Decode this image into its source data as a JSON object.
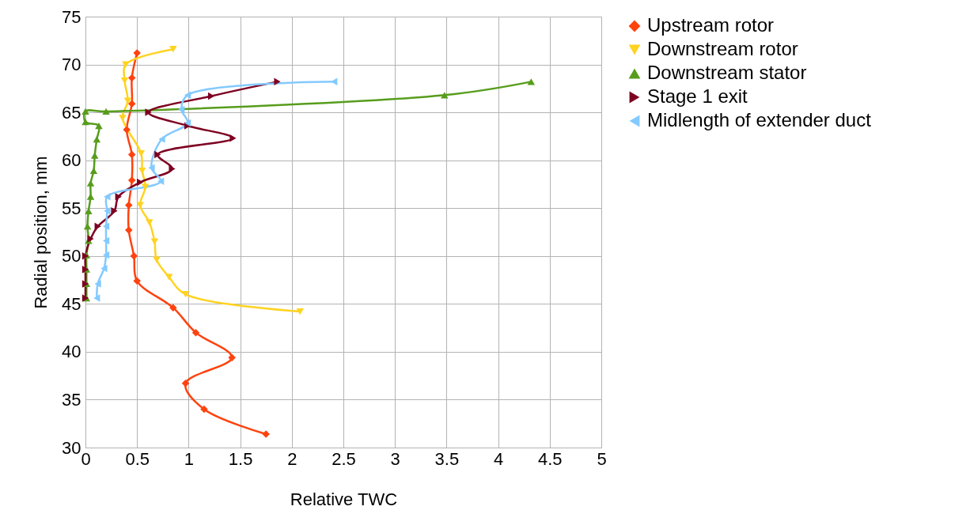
{
  "chart_data": {
    "type": "line",
    "xlabel": "Relative TWC",
    "ylabel": "Radial position, mm",
    "xlim": [
      0,
      5
    ],
    "ylim": [
      30,
      75
    ],
    "xticks": [
      0,
      0.5,
      1,
      1.5,
      2,
      2.5,
      3,
      3.5,
      4,
      4.5,
      5
    ],
    "yticks": [
      30,
      35,
      40,
      45,
      50,
      55,
      60,
      65,
      70,
      75
    ],
    "grid": true,
    "legend": "right",
    "line_style": "solid",
    "series": [
      {
        "name": "Upstream rotor",
        "color": "#ff420e",
        "marker": "diamond",
        "x": [
          1.75,
          1.15,
          0.97,
          1.42,
          1.07,
          0.85,
          0.5,
          0.47,
          0.42,
          0.42,
          0.45,
          0.45,
          0.4,
          0.45,
          0.45,
          0.5
        ],
        "values": [
          31.4,
          34.0,
          36.7,
          39.4,
          42.0,
          44.6,
          47.4,
          50.0,
          52.7,
          55.3,
          57.9,
          60.6,
          63.2,
          65.9,
          68.6,
          71.2
        ]
      },
      {
        "name": "Downstream rotor",
        "color": "#ffd320",
        "marker": "triangle-down",
        "x": [
          2.08,
          0.97,
          0.81,
          0.69,
          0.67,
          0.62,
          0.53,
          0.58,
          0.55,
          0.54,
          0.36,
          0.41,
          0.38,
          0.39,
          0.85
        ],
        "values": [
          44.2,
          46.0,
          47.8,
          49.6,
          51.5,
          53.5,
          55.3,
          57.2,
          58.9,
          60.7,
          64.4,
          66.2,
          68.3,
          70.0,
          71.6
        ]
      },
      {
        "name": "Downstream stator",
        "color": "#579d1c",
        "marker": "triangle-up",
        "x": [
          0.01,
          0.01,
          0.01,
          0.01,
          0.03,
          0.02,
          0.03,
          0.05,
          0.05,
          0.08,
          0.09,
          0.11,
          0.13,
          0,
          0,
          0.2,
          3.48,
          4.32
        ],
        "values": [
          45.6,
          47.1,
          48.6,
          50.1,
          51.6,
          53.1,
          54.7,
          56.2,
          57.6,
          58.9,
          60.5,
          62.2,
          63.6,
          64.0,
          65.1,
          65.1,
          66.8,
          68.2
        ]
      },
      {
        "name": "Stage 1 exit",
        "color": "#7e0021",
        "marker": "triangle-right",
        "x": [
          0,
          0,
          0,
          0,
          0.05,
          0.12,
          0.28,
          0.32,
          0.53,
          0.84,
          0.7,
          1.43,
          0.99,
          0.61,
          1.22,
          1.86
        ],
        "values": [
          45.6,
          47.1,
          48.6,
          50.0,
          51.8,
          53.1,
          54.7,
          56.2,
          57.7,
          59.1,
          60.6,
          62.3,
          63.6,
          65.0,
          66.7,
          68.2
        ]
      },
      {
        "name": "Midlength of extender duct",
        "color": "#83caff",
        "marker": "triangle-left",
        "x": [
          0.11,
          0.12,
          0.18,
          0.2,
          0.2,
          0.2,
          0.21,
          0.21,
          0.73,
          0.64,
          0.74,
          0.99,
          0.93,
          0.99,
          2.41
        ],
        "values": [
          45.6,
          47.1,
          48.7,
          50.1,
          51.6,
          53.1,
          54.7,
          56.2,
          57.8,
          59.2,
          62.2,
          63.9,
          65.3,
          66.8,
          68.2
        ]
      }
    ]
  }
}
